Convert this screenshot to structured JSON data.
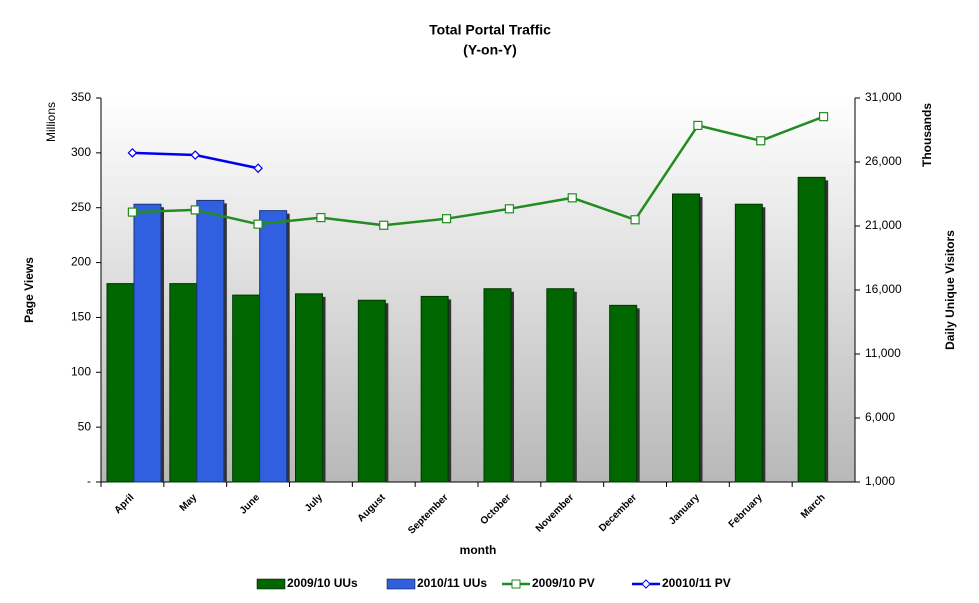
{
  "chart_data": {
    "type": "combo",
    "title": "Total Portal Traffic",
    "subtitle": "(Y-on-Y)",
    "x_label": "month",
    "y_label": "Page Views",
    "y_unit": "Millions",
    "y2_label": "Daily Unique Visitors",
    "y2_unit": "Thousands",
    "categories": [
      "April",
      "May",
      "June",
      "July",
      "August",
      "September",
      "October",
      "November",
      "December",
      "January",
      "February",
      "March"
    ],
    "ylim": [
      0,
      350
    ],
    "yticks": [
      {
        "value": 0,
        "label": "-"
      },
      50,
      100,
      150,
      200,
      250,
      300,
      350
    ],
    "y2lim": [
      1000,
      31000
    ],
    "y2ticks": [
      {
        "value": 1000,
        "label": "1,000"
      },
      {
        "value": 6000,
        "label": "6,000"
      },
      {
        "value": 11000,
        "label": "11,000"
      },
      {
        "value": 16000,
        "label": "16,000"
      },
      {
        "value": 21000,
        "label": "21,000"
      },
      {
        "value": 26000,
        "label": "26,000"
      },
      {
        "value": 31000,
        "label": "31,000"
      }
    ],
    "series": [
      {
        "name": "2009/10 UUs",
        "type": "bar",
        "axis": "y2",
        "color": "#006600",
        "values": [
          16500,
          16500,
          15600,
          15700,
          15200,
          15500,
          16100,
          16100,
          14800,
          23500,
          22700,
          24800
        ]
      },
      {
        "name": "2010/11 UUs",
        "type": "bar",
        "axis": "y2",
        "color": "#3060e0",
        "values": [
          22700,
          23000,
          22200,
          null,
          null,
          null,
          null,
          null,
          null,
          null,
          null,
          null
        ]
      },
      {
        "name": "2009/10 PV",
        "type": "line",
        "color": "#228b22",
        "marker": "square",
        "values": [
          246,
          248,
          235,
          241,
          234,
          240,
          249,
          259,
          239,
          325,
          311,
          333
        ]
      },
      {
        "name": "20010/11 PV",
        "type": "line",
        "color": "#0000ee",
        "marker": "diamond",
        "values": [
          300,
          298,
          286,
          null,
          null,
          null,
          null,
          null,
          null,
          null,
          null,
          null
        ]
      }
    ]
  }
}
